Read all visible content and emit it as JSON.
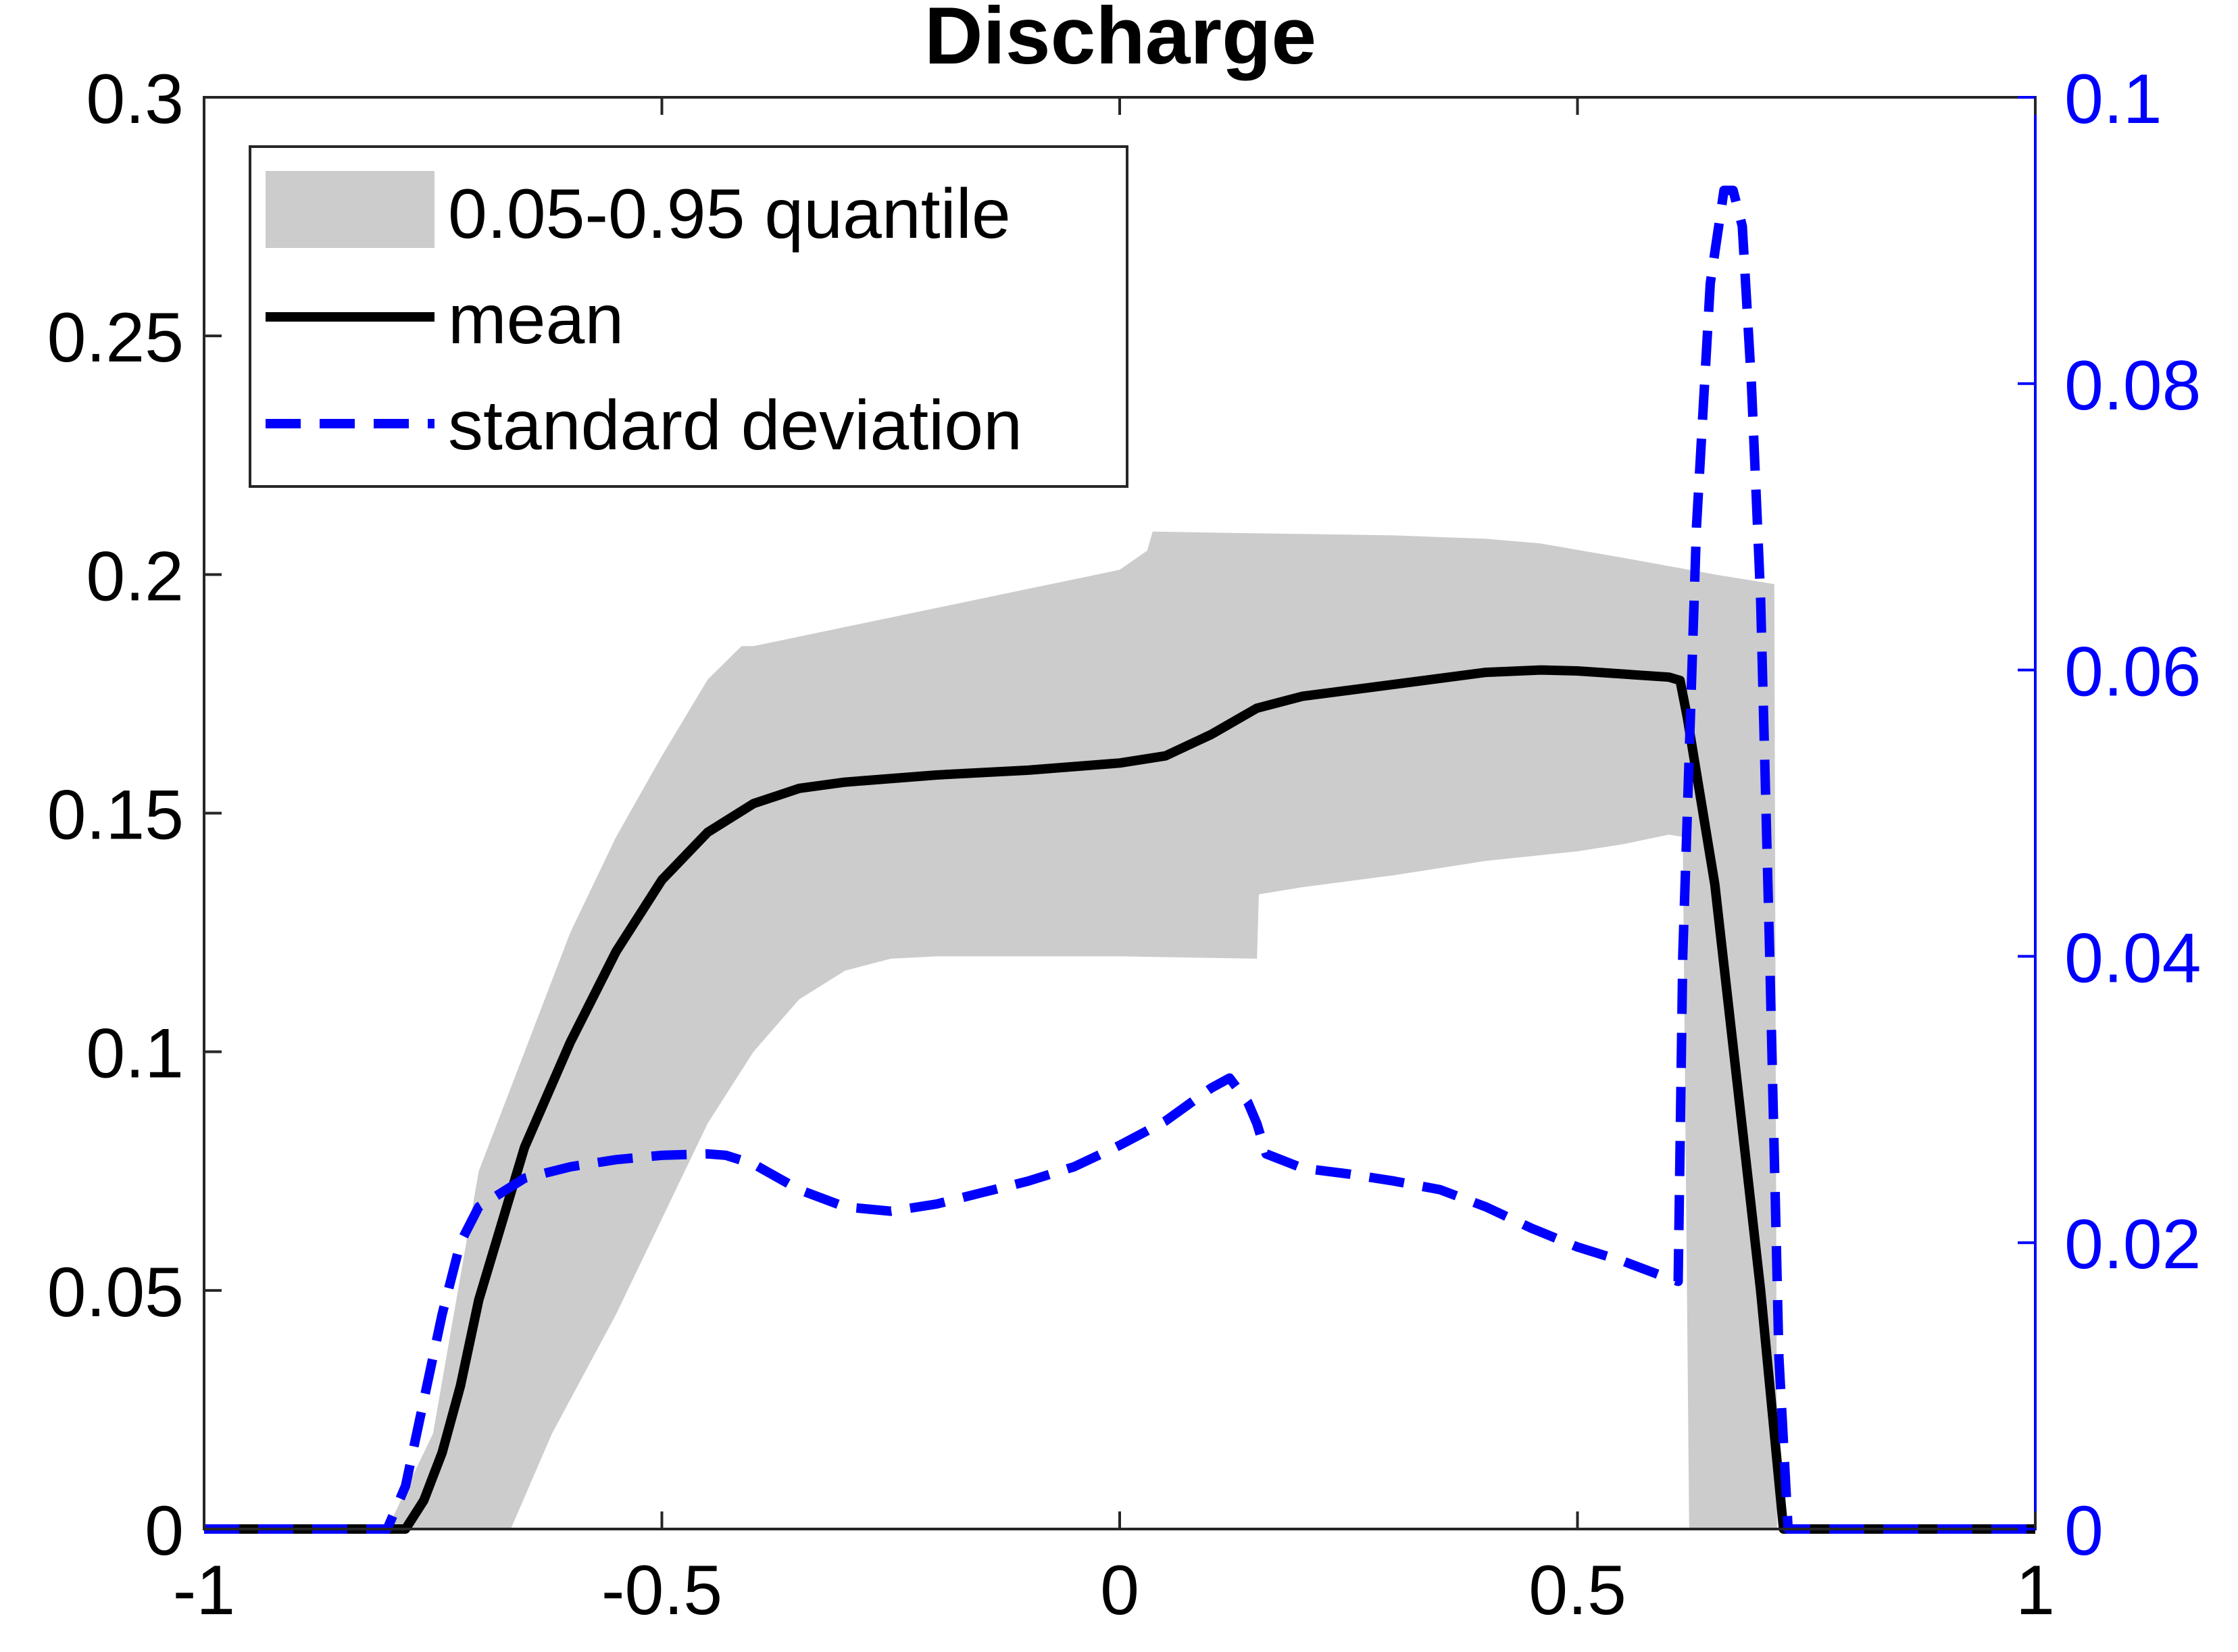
{
  "chart_data": {
    "type": "line",
    "title": "Discharge",
    "xlabel": "",
    "ylabel": "",
    "xlim": [
      -1,
      1
    ],
    "ylim_left": [
      0,
      0.3
    ],
    "ylim_right": [
      0,
      0.1
    ],
    "x_ticks": [
      -1,
      -0.5,
      0,
      0.5,
      1
    ],
    "x_tick_labels": [
      "-1",
      "-0.5",
      "0",
      "0.5",
      "1"
    ],
    "y_left_ticks": [
      0,
      0.05,
      0.1,
      0.15,
      0.2,
      0.25,
      0.3
    ],
    "y_left_tick_labels": [
      "0",
      "0.05",
      "0.1",
      "0.15",
      "0.2",
      "0.25",
      "0.3"
    ],
    "y_right_ticks": [
      0,
      0.02,
      0.04,
      0.06,
      0.08,
      0.1
    ],
    "y_right_tick_labels": [
      "0",
      "0.02",
      "0.04",
      "0.06",
      "0.08",
      "0.1"
    ],
    "grid": false,
    "legend_position": "top-left",
    "colors": {
      "band": "#cccccc",
      "mean": "#000000",
      "std": "#0000ff",
      "right_axis": "#0000ff",
      "axis": "#262626"
    },
    "legend": [
      {
        "key": "band",
        "label": "0.05-0.95 quantile"
      },
      {
        "key": "mean",
        "label": "mean"
      },
      {
        "key": "std",
        "label": "standard deviation"
      }
    ],
    "series": [
      {
        "name": "0.05-0.95 quantile",
        "axis": "left",
        "kind": "band",
        "upper": [
          [
            -0.8,
            0
          ],
          [
            -0.75,
            0.02
          ],
          [
            -0.7,
            0.075
          ],
          [
            -0.65,
            0.1
          ],
          [
            -0.6,
            0.125
          ],
          [
            -0.55,
            0.145
          ],
          [
            -0.5,
            0.162
          ],
          [
            -0.45,
            0.178
          ],
          [
            -0.413,
            0.185
          ],
          [
            -0.4,
            0.185
          ],
          [
            -0.3,
            0.189
          ],
          [
            -0.2,
            0.193
          ],
          [
            -0.1,
            0.197
          ],
          [
            0,
            0.201
          ],
          [
            0.03,
            0.205
          ],
          [
            0.036,
            0.209
          ],
          [
            0.1,
            0.2088
          ],
          [
            0.2,
            0.2085
          ],
          [
            0.3,
            0.2082
          ],
          [
            0.4,
            0.2075
          ],
          [
            0.46,
            0.2065
          ],
          [
            0.55,
            0.2035
          ],
          [
            0.65,
            0.2
          ],
          [
            0.715,
            0.198
          ],
          [
            0.718,
            0
          ]
        ],
        "lower": [
          [
            -0.665,
            0
          ],
          [
            -0.62,
            0.02
          ],
          [
            -0.55,
            0.045
          ],
          [
            -0.5,
            0.065
          ],
          [
            -0.45,
            0.085
          ],
          [
            -0.4,
            0.1
          ],
          [
            -0.35,
            0.111
          ],
          [
            -0.3,
            0.117
          ],
          [
            -0.25,
            0.1195
          ],
          [
            -0.2,
            0.12
          ],
          [
            0,
            0.12
          ],
          [
            0.15,
            0.1195
          ],
          [
            0.152,
            0.133
          ],
          [
            0.2,
            0.1345
          ],
          [
            0.3,
            0.137
          ],
          [
            0.4,
            0.14
          ],
          [
            0.5,
            0.142
          ],
          [
            0.55,
            0.1435
          ],
          [
            0.6,
            0.1455
          ],
          [
            0.615,
            0.145
          ],
          [
            0.622,
            0
          ]
        ]
      },
      {
        "name": "mean",
        "axis": "left",
        "points": [
          [
            -1,
            0
          ],
          [
            -0.78,
            0
          ],
          [
            -0.76,
            0.006
          ],
          [
            -0.74,
            0.016
          ],
          [
            -0.72,
            0.03
          ],
          [
            -0.7,
            0.048
          ],
          [
            -0.65,
            0.08
          ],
          [
            -0.6,
            0.102
          ],
          [
            -0.55,
            0.121
          ],
          [
            -0.5,
            0.136
          ],
          [
            -0.45,
            0.146
          ],
          [
            -0.4,
            0.152
          ],
          [
            -0.35,
            0.1552
          ],
          [
            -0.3,
            0.1565
          ],
          [
            -0.2,
            0.158
          ],
          [
            -0.1,
            0.159
          ],
          [
            0,
            0.1605
          ],
          [
            0.05,
            0.162
          ],
          [
            0.1,
            0.1665
          ],
          [
            0.15,
            0.172
          ],
          [
            0.2,
            0.1745
          ],
          [
            0.3,
            0.177
          ],
          [
            0.4,
            0.1795
          ],
          [
            0.46,
            0.18
          ],
          [
            0.5,
            0.1798
          ],
          [
            0.6,
            0.1785
          ],
          [
            0.612,
            0.1778
          ],
          [
            0.62,
            0.17
          ],
          [
            0.65,
            0.135
          ],
          [
            0.7,
            0.05
          ],
          [
            0.725,
            0
          ],
          [
            1,
            0
          ]
        ]
      },
      {
        "name": "standard deviation",
        "axis": "right",
        "points": [
          [
            -1,
            0
          ],
          [
            -0.8,
            0
          ],
          [
            -0.78,
            0.003
          ],
          [
            -0.76,
            0.009
          ],
          [
            -0.74,
            0.015
          ],
          [
            -0.72,
            0.02
          ],
          [
            -0.7,
            0.0225
          ],
          [
            -0.65,
            0.0245
          ],
          [
            -0.6,
            0.0253
          ],
          [
            -0.55,
            0.0258
          ],
          [
            -0.5,
            0.0261
          ],
          [
            -0.45,
            0.0262
          ],
          [
            -0.43,
            0.0261
          ],
          [
            -0.4,
            0.0255
          ],
          [
            -0.35,
            0.0237
          ],
          [
            -0.3,
            0.0225
          ],
          [
            -0.25,
            0.0222
          ],
          [
            -0.2,
            0.0227
          ],
          [
            -0.15,
            0.0235
          ],
          [
            -0.1,
            0.0243
          ],
          [
            -0.05,
            0.0253
          ],
          [
            0,
            0.0268
          ],
          [
            0.05,
            0.0285
          ],
          [
            0.1,
            0.0308
          ],
          [
            0.12,
            0.0315
          ],
          [
            0.14,
            0.0298
          ],
          [
            0.15,
            0.0283
          ],
          [
            0.16,
            0.0262
          ],
          [
            0.2,
            0.0252
          ],
          [
            0.25,
            0.0248
          ],
          [
            0.3,
            0.0243
          ],
          [
            0.35,
            0.0237
          ],
          [
            0.4,
            0.0225
          ],
          [
            0.45,
            0.021
          ],
          [
            0.5,
            0.0197
          ],
          [
            0.55,
            0.0187
          ],
          [
            0.6,
            0.0175
          ],
          [
            0.61,
            0.0173
          ],
          [
            0.615,
            0.04
          ],
          [
            0.63,
            0.07
          ],
          [
            0.645,
            0.087
          ],
          [
            0.66,
            0.0935
          ],
          [
            0.67,
            0.0935
          ],
          [
            0.68,
            0.091
          ],
          [
            0.69,
            0.08
          ],
          [
            0.7,
            0.065
          ],
          [
            0.71,
            0.04
          ],
          [
            0.72,
            0.012
          ],
          [
            0.73,
            0
          ],
          [
            1,
            0
          ]
        ]
      }
    ]
  }
}
